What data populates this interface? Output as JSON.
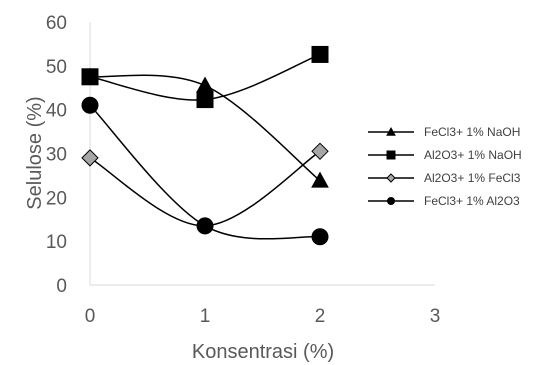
{
  "chart_data": {
    "type": "scatter",
    "xlabel": "Konsentrasi (%)",
    "ylabel": "Selulose (%)",
    "xlim": [
      0,
      3
    ],
    "ylim": [
      0,
      60
    ],
    "xticks": [
      "0",
      "1",
      "2",
      "3"
    ],
    "yticks": [
      "0",
      "10",
      "20",
      "30",
      "40",
      "50",
      "60"
    ],
    "grid": false,
    "legend_position": "right",
    "smooth_lines": true,
    "series": [
      {
        "name": "FeCl3+ 1% NaOH",
        "marker": "triangle",
        "color": "#000000",
        "x": [
          0,
          1,
          2
        ],
        "y": [
          47.5,
          45.5,
          23.8
        ]
      },
      {
        "name": "Al2O3+ 1% NaOH",
        "marker": "square",
        "color": "#000000",
        "x": [
          0,
          1,
          2
        ],
        "y": [
          47.5,
          42.3,
          52.6
        ]
      },
      {
        "name": "Al2O3+ 1% FeCl3",
        "marker": "diamond",
        "color": "#000000",
        "fill": "#a6a6a6",
        "x": [
          0,
          1,
          2
        ],
        "y": [
          29,
          13.5,
          30.5
        ]
      },
      {
        "name": "FeCl3+ 1% Al2O3",
        "marker": "circle",
        "color": "#000000",
        "x": [
          0,
          1,
          2
        ],
        "y": [
          41,
          13.5,
          11
        ]
      }
    ]
  }
}
